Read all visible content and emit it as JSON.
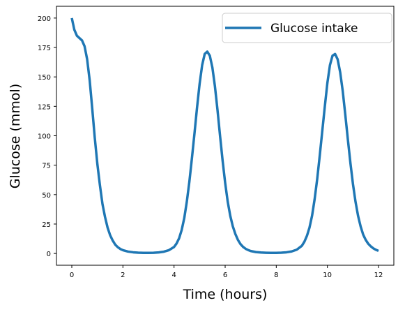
{
  "chart_data": {
    "type": "line",
    "xlabel": "Time (hours)",
    "ylabel": "Glucose (mmol)",
    "xlim": [
      -0.6,
      12.6
    ],
    "ylim": [
      -10,
      210
    ],
    "xticks": [
      0,
      2,
      4,
      6,
      8,
      10,
      12
    ],
    "yticks": [
      0,
      25,
      50,
      75,
      100,
      125,
      150,
      175,
      200
    ],
    "grid": false,
    "legend": {
      "position": "top-right",
      "entries": [
        "Glucose intake"
      ]
    },
    "series": [
      {
        "name": "Glucose intake",
        "color": "#1f77b4",
        "x": [
          0.0,
          0.1,
          0.2,
          0.3,
          0.4,
          0.5,
          0.6,
          0.7,
          0.8,
          0.9,
          1.0,
          1.1,
          1.2,
          1.3,
          1.4,
          1.5,
          1.6,
          1.7,
          1.8,
          1.9,
          2.0,
          2.2,
          2.4,
          2.6,
          2.8,
          3.0,
          3.2,
          3.4,
          3.6,
          3.8,
          4.0,
          4.1,
          4.2,
          4.3,
          4.4,
          4.5,
          4.6,
          4.7,
          4.8,
          4.9,
          5.0,
          5.1,
          5.2,
          5.3,
          5.4,
          5.5,
          5.6,
          5.7,
          5.8,
          5.9,
          6.0,
          6.1,
          6.2,
          6.3,
          6.4,
          6.5,
          6.6,
          6.7,
          6.8,
          6.9,
          7.0,
          7.2,
          7.4,
          7.6,
          7.8,
          8.0,
          8.2,
          8.4,
          8.6,
          8.8,
          9.0,
          9.1,
          9.2,
          9.3,
          9.4,
          9.5,
          9.6,
          9.7,
          9.8,
          9.9,
          10.0,
          10.1,
          10.2,
          10.3,
          10.4,
          10.5,
          10.6,
          10.7,
          10.8,
          10.9,
          11.0,
          11.1,
          11.2,
          11.3,
          11.4,
          11.5,
          11.6,
          11.7,
          11.8,
          11.9,
          12.0
        ],
        "values": [
          200,
          190,
          185,
          183,
          181,
          176,
          165,
          147,
          123,
          98,
          76,
          58,
          42,
          31,
          22,
          15.5,
          11,
          7.5,
          5.3,
          3.8,
          2.8,
          1.6,
          1.0,
          0.7,
          0.5,
          0.5,
          0.6,
          0.9,
          1.5,
          2.8,
          5.5,
          8.5,
          13,
          20,
          30,
          44,
          61,
          81,
          102,
          124,
          144,
          160,
          169.5,
          171.5,
          168,
          158,
          142,
          122,
          100,
          79,
          60,
          44,
          32,
          23,
          16.5,
          11.5,
          8,
          5.6,
          4.0,
          2.9,
          2.1,
          1.2,
          0.8,
          0.6,
          0.5,
          0.5,
          0.7,
          1.0,
          1.7,
          3.2,
          6.5,
          10,
          15,
          22,
          32,
          46,
          63,
          83,
          104,
          125,
          145,
          160,
          168,
          169.5,
          165,
          154,
          138,
          118,
          97,
          77,
          59,
          44,
          32,
          23,
          16,
          11.5,
          8.2,
          6,
          4.3,
          3.1,
          2.2
        ]
      }
    ]
  }
}
